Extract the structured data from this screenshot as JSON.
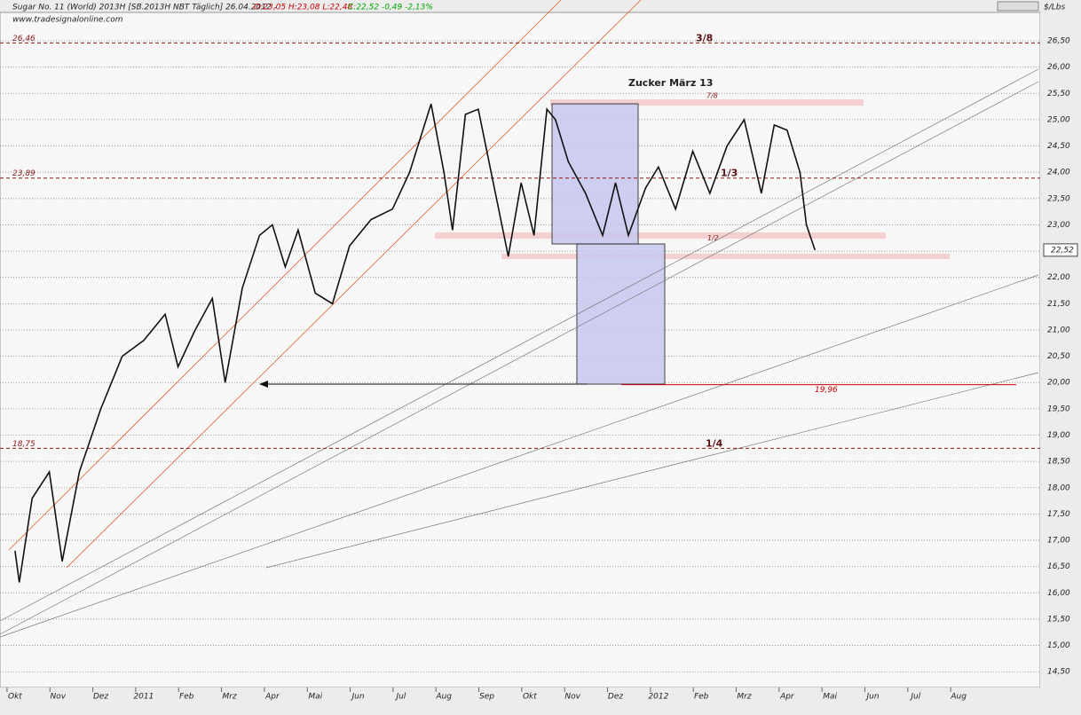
{
  "chart_data": {
    "type": "line",
    "title": "Sugar No. 11 (World) 2013H [SB.2013H NBT Täglich] 26.04.2012 -",
    "ohlc": "O:23,05 H:23,08 L:22,48",
    "change": "C:22,52 -0,49 -2,13%",
    "subtitle": "www.tradesignalonline.com",
    "unit": "$/Lbs",
    "annotation": "Zucker März 13",
    "color": "#111111",
    "x": [
      0,
      0.1,
      0.4,
      0.8,
      1.1,
      1.5,
      2.0,
      2.5,
      3.0,
      3.5,
      3.8,
      4.2,
      4.6,
      4.9,
      5.3,
      5.7,
      6.0,
      6.3,
      6.6,
      7.0,
      7.4,
      7.8,
      8.3,
      8.8,
      9.2,
      9.7,
      10.0,
      10.2,
      10.5,
      10.8,
      11.1,
      11.5,
      11.8,
      12.1,
      12.4,
      12.6,
      12.9,
      13.3,
      13.7,
      14.0,
      14.3,
      14.7,
      15.0,
      15.4,
      15.8,
      16.2,
      16.6,
      17.0,
      17.4,
      17.7,
      18.0,
      18.3,
      18.45,
      18.65
    ],
    "values": [
      16.8,
      16.2,
      17.8,
      18.3,
      16.6,
      18.3,
      19.5,
      20.5,
      20.8,
      21.3,
      20.3,
      21.0,
      21.6,
      20.0,
      21.8,
      22.8,
      23.0,
      22.2,
      22.9,
      21.7,
      21.5,
      22.6,
      23.1,
      23.3,
      24.0,
      25.3,
      24.0,
      22.9,
      25.1,
      25.2,
      24.0,
      22.4,
      23.8,
      22.8,
      25.2,
      25.0,
      24.2,
      23.6,
      22.8,
      23.8,
      22.8,
      23.7,
      24.1,
      23.3,
      24.4,
      23.6,
      24.5,
      25.0,
      23.6,
      24.9,
      24.8,
      24.0,
      23.0,
      22.52
    ],
    "last_label": "22,52",
    "xlim": [
      -0.35,
      23.9
    ],
    "xticks": [
      {
        "value": 0,
        "label": "Okt"
      },
      {
        "value": 1,
        "label": "Nov"
      },
      {
        "value": 2,
        "label": "Dez"
      },
      {
        "value": 3,
        "label": "2011"
      },
      {
        "value": 4,
        "label": "Feb"
      },
      {
        "value": 5,
        "label": "Mrz"
      },
      {
        "value": 6,
        "label": "Apr"
      },
      {
        "value": 7,
        "label": "Mai"
      },
      {
        "value": 8,
        "label": "Jun"
      },
      {
        "value": 9,
        "label": "Jul"
      },
      {
        "value": 10,
        "label": "Aug"
      },
      {
        "value": 11,
        "label": "Sep"
      },
      {
        "value": 12,
        "label": "Okt"
      },
      {
        "value": 13,
        "label": "Nov"
      },
      {
        "value": 14,
        "label": "Dez"
      },
      {
        "value": 15,
        "label": "2012"
      },
      {
        "value": 16,
        "label": "Feb"
      },
      {
        "value": 17,
        "label": "Mrz"
      },
      {
        "value": 18,
        "label": "Apr"
      },
      {
        "value": 19,
        "label": "Mai"
      },
      {
        "value": 20,
        "label": "Jun"
      },
      {
        "value": 21,
        "label": "Jul"
      },
      {
        "value": 22,
        "label": "Aug"
      }
    ],
    "ylim": [
      14.2,
      27.04
    ],
    "yticks": [
      {
        "value": 14.5,
        "label": "14,50"
      },
      {
        "value": 15,
        "label": "15,00"
      },
      {
        "value": 15.5,
        "label": "15,50"
      },
      {
        "value": 16,
        "label": "16,00"
      },
      {
        "value": 16.5,
        "label": "16,50"
      },
      {
        "value": 17,
        "label": "17,00"
      },
      {
        "value": 17.5,
        "label": "17,50"
      },
      {
        "value": 18,
        "label": "18,00"
      },
      {
        "value": 18.5,
        "label": "18,50"
      },
      {
        "value": 19,
        "label": "19,00"
      },
      {
        "value": 19.5,
        "label": "19,50"
      },
      {
        "value": 20,
        "label": "20,00"
      },
      {
        "value": 20.5,
        "label": "20,50"
      },
      {
        "value": 21,
        "label": "21,00"
      },
      {
        "value": 21.5,
        "label": "21,50"
      },
      {
        "value": 22,
        "label": "22,00"
      },
      {
        "value": 22.5,
        "label": "22,50"
      },
      {
        "value": 23,
        "label": "23,00"
      },
      {
        "value": 23.5,
        "label": "23,50"
      },
      {
        "value": 24,
        "label": "24,00"
      },
      {
        "value": 24.5,
        "label": "24,50"
      },
      {
        "value": 25,
        "label": "25,00"
      },
      {
        "value": 25.5,
        "label": "25,50"
      },
      {
        "value": 26,
        "label": "26,00"
      },
      {
        "value": 26.5,
        "label": "26,50"
      }
    ],
    "grid": true,
    "levels": [
      {
        "value": 26.46,
        "label": "26,46",
        "ratio": "3/8"
      },
      {
        "value": 23.89,
        "label": "23,89",
        "ratio": "1/3"
      },
      {
        "value": 18.75,
        "label": "18,75",
        "ratio": "1/4"
      }
    ],
    "ratio_marks": [
      {
        "value": 25.45,
        "label": "7/8"
      },
      {
        "value": 22.75,
        "label": "1/2"
      }
    ],
    "target": {
      "value": 19.96,
      "label": "19,96"
    }
  }
}
